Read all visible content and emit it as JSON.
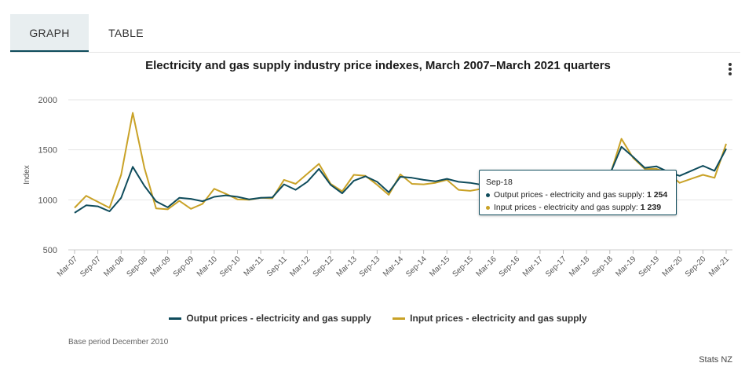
{
  "tabs": [
    {
      "label": "GRAPH"
    },
    {
      "label": "TABLE"
    }
  ],
  "colors": {
    "output": "#0f4c5c",
    "input": "#c9a227",
    "accent": "#0f4c5c"
  },
  "icons": {
    "menu": "more-vertical-icon"
  },
  "base_period": "Base period December 2010",
  "credit": "Stats NZ",
  "tooltip": {
    "date": "Sep-18",
    "rows": [
      {
        "label": "Output prices - electricity and gas supply:",
        "value": "1 254"
      },
      {
        "label": "Input prices - electricity and gas supply:",
        "value": "1 239"
      }
    ]
  },
  "chart_data": {
    "type": "line",
    "title": "Electricity and gas supply industry price indexes, March 2007–March 2021 quarters",
    "xlabel": "",
    "ylabel": "Index",
    "ylim": [
      500,
      2000
    ],
    "yticks": [
      500,
      1000,
      1500,
      2000
    ],
    "grid": true,
    "legend": "bottom",
    "x_tick_labels": [
      "Mar-07",
      "Sep-07",
      "Mar-08",
      "Sep-08",
      "Mar-09",
      "Sep-09",
      "Mar-10",
      "Sep-10",
      "Mar-11",
      "Sep-11",
      "Mar-12",
      "Sep-12",
      "Mar-13",
      "Sep-13",
      "Mar-14",
      "Sep-14",
      "Mar-15",
      "Sep-15",
      "Mar-16",
      "Sep-16",
      "Mar-17",
      "Sep-17",
      "Mar-18",
      "Sep-18",
      "Mar-19",
      "Sep-19",
      "Mar-20",
      "Sep-20",
      "Mar-21"
    ],
    "x": [
      "Mar-07",
      "Jun-07",
      "Sep-07",
      "Dec-07",
      "Mar-08",
      "Jun-08",
      "Sep-08",
      "Dec-08",
      "Mar-09",
      "Jun-09",
      "Sep-09",
      "Dec-09",
      "Mar-10",
      "Jun-10",
      "Sep-10",
      "Dec-10",
      "Mar-11",
      "Jun-11",
      "Sep-11",
      "Dec-11",
      "Mar-12",
      "Jun-12",
      "Sep-12",
      "Dec-12",
      "Mar-13",
      "Jun-13",
      "Sep-13",
      "Dec-13",
      "Mar-14",
      "Jun-14",
      "Sep-14",
      "Dec-14",
      "Mar-15",
      "Jun-15",
      "Sep-15",
      "Dec-15",
      "Mar-16",
      "Jun-16",
      "Sep-16",
      "Dec-16",
      "Mar-17",
      "Jun-17",
      "Sep-17",
      "Dec-17",
      "Mar-18",
      "Jun-18",
      "Sep-18",
      "Dec-18",
      "Mar-19",
      "Jun-19",
      "Sep-19",
      "Dec-19",
      "Mar-20",
      "Jun-20",
      "Sep-20",
      "Dec-20",
      "Mar-21"
    ],
    "series": [
      {
        "name": "Output prices - electricity and gas supply",
        "color": "#0f4c5c",
        "values": [
          870,
          945,
          935,
          885,
          1020,
          1330,
          1140,
          985,
          925,
          1020,
          1010,
          985,
          1030,
          1045,
          1030,
          1005,
          1020,
          1025,
          1155,
          1100,
          1180,
          1310,
          1150,
          1065,
          1190,
          1235,
          1180,
          1075,
          1230,
          1220,
          1200,
          1185,
          1210,
          1180,
          1170,
          1150,
          1145,
          1150,
          1140,
          1120,
          1140,
          1200,
          1270,
          1260,
          1240,
          1240,
          1254,
          1530,
          1430,
          1320,
          1335,
          1280,
          1240,
          1290,
          1340,
          1290,
          1510
        ]
      },
      {
        "name": "Input prices - electricity and gas supply",
        "color": "#c9a227",
        "values": [
          920,
          1040,
          980,
          920,
          1250,
          1870,
          1320,
          915,
          905,
          990,
          910,
          960,
          1110,
          1060,
          1005,
          1000,
          1020,
          1015,
          1200,
          1160,
          1260,
          1360,
          1160,
          1085,
          1250,
          1240,
          1150,
          1050,
          1255,
          1160,
          1155,
          1170,
          1200,
          1100,
          1090,
          1110,
          1120,
          1130,
          1130,
          1115,
          1140,
          1210,
          1270,
          1250,
          1240,
          1220,
          1239,
          1610,
          1420,
          1310,
          1310,
          1270,
          1170,
          1210,
          1250,
          1220,
          1560
        ]
      }
    ]
  }
}
